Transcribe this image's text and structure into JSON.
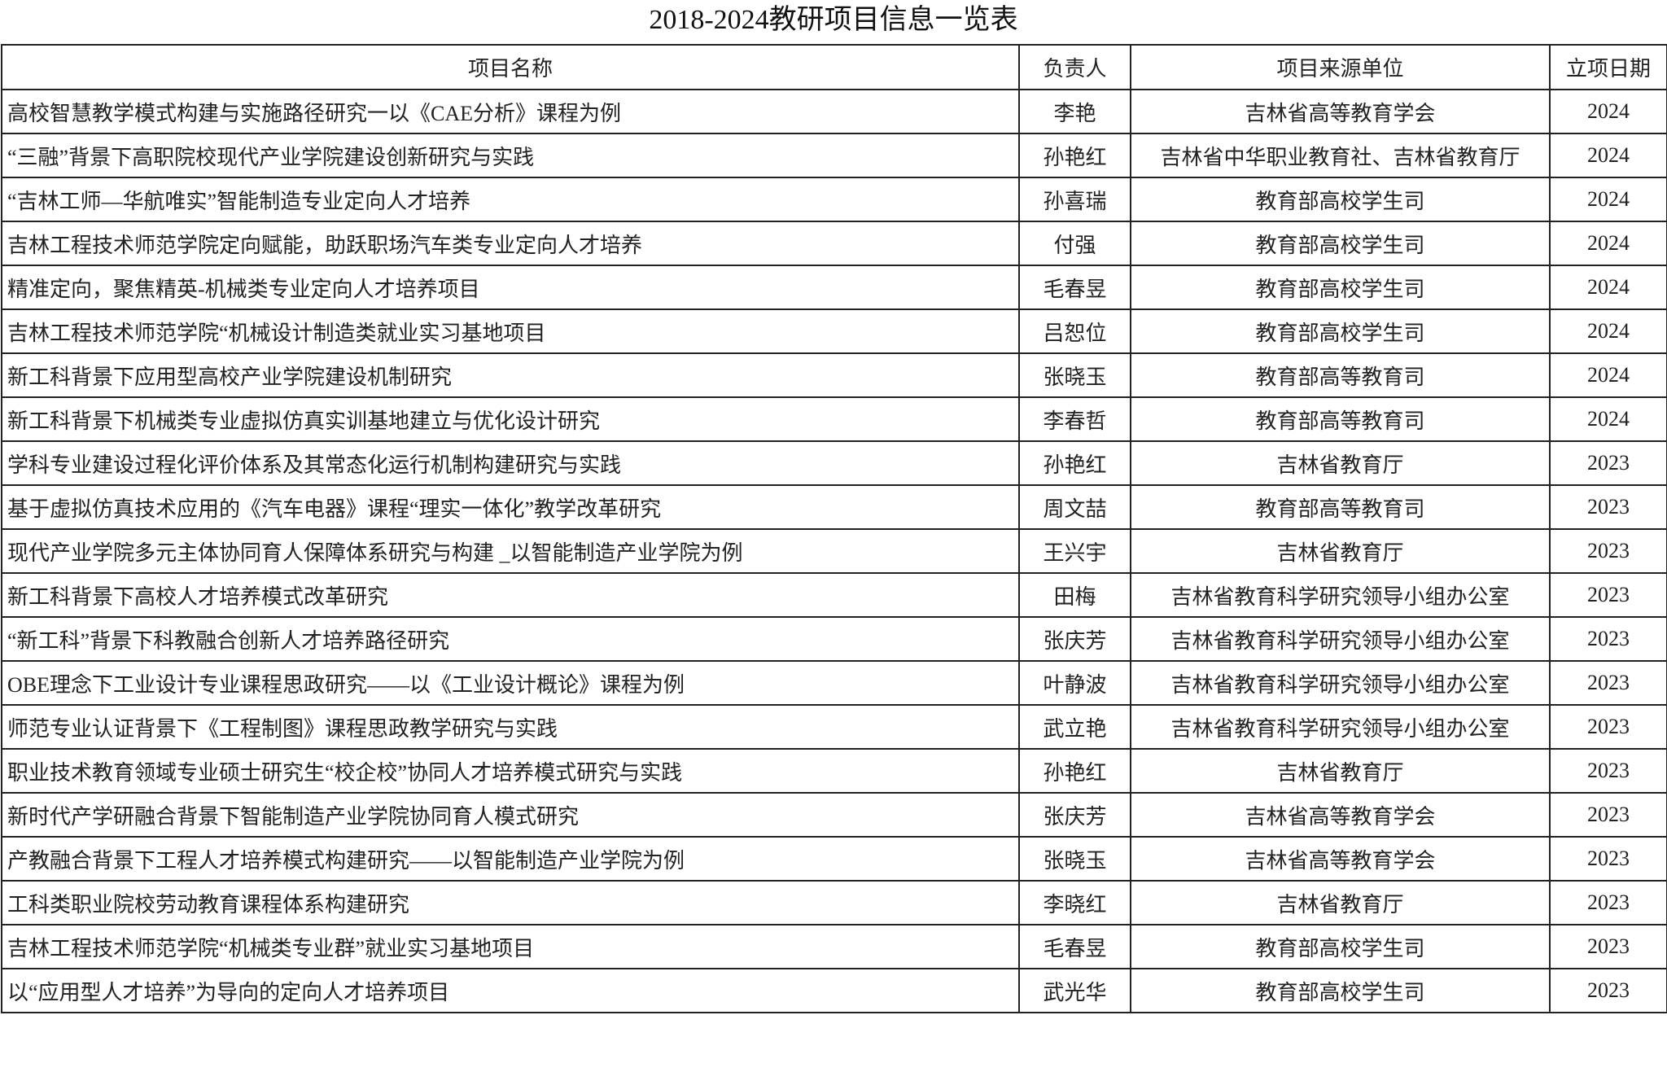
{
  "title": "2018-2024教研项目信息一览表",
  "headers": [
    "项目名称",
    "负责人",
    "项目来源单位",
    "立项日期"
  ],
  "rows": [
    [
      "高校智慧教学模式构建与实施路径研究一以《CAE分析》课程为例",
      "李艳",
      "吉林省高等教育学会",
      "2024"
    ],
    [
      "“三融”背景下高职院校现代产业学院建设创新研究与实践",
      "孙艳红",
      "吉林省中华职业教育社、吉林省教育厅",
      "2024"
    ],
    [
      "“吉林工师—华航唯实”智能制造专业定向人才培养",
      "孙喜瑞",
      "教育部高校学生司",
      "2024"
    ],
    [
      "吉林工程技术师范学院定向赋能，助跃职场汽车类专业定向人才培养",
      "付强",
      "教育部高校学生司",
      "2024"
    ],
    [
      "精准定向，聚焦精英-机械类专业定向人才培养项目",
      "毛春昱",
      "教育部高校学生司",
      "2024"
    ],
    [
      "吉林工程技术师范学院“机械设计制造类就业实习基地项目",
      "吕恕位",
      "教育部高校学生司",
      "2024"
    ],
    [
      "新工科背景下应用型高校产业学院建设机制研究",
      "张晓玉",
      "教育部高等教育司",
      "2024"
    ],
    [
      "新工科背景下机械类专业虚拟仿真实训基地建立与优化设计研究",
      "李春哲",
      "教育部高等教育司",
      "2024"
    ],
    [
      "学科专业建设过程化评价体系及其常态化运行机制构建研究与实践",
      "孙艳红",
      "吉林省教育厅",
      "2023"
    ],
    [
      "基于虚拟仿真技术应用的《汽车电器》课程“理实一体化”教学改革研究",
      "周文喆",
      "教育部高等教育司",
      "2023"
    ],
    [
      "现代产业学院多元主体协同育人保障体系研究与构建 _以智能制造产业学院为例",
      "王兴宇",
      "吉林省教育厅",
      "2023"
    ],
    [
      "新工科背景下高校人才培养模式改革研究",
      "田梅",
      "吉林省教育科学研究领导小组办公室",
      "2023"
    ],
    [
      "“新工科”背景下科教融合创新人才培养路径研究",
      "张庆芳",
      "吉林省教育科学研究领导小组办公室",
      "2023"
    ],
    [
      "OBE理念下工业设计专业课程思政研究——以《工业设计概论》课程为例",
      "叶静波",
      "吉林省教育科学研究领导小组办公室",
      "2023"
    ],
    [
      "师范专业认证背景下《工程制图》课程思政教学研究与实践",
      "武立艳",
      "吉林省教育科学研究领导小组办公室",
      "2023"
    ],
    [
      "职业技术教育领域专业硕士研究生“校企校”协同人才培养模式研究与实践",
      "孙艳红",
      "吉林省教育厅",
      "2023"
    ],
    [
      "新时代产学研融合背景下智能制造产业学院协同育人模式研究",
      "张庆芳",
      "吉林省高等教育学会",
      "2023"
    ],
    [
      "产教融合背景下工程人才培养模式构建研究——以智能制造产业学院为例",
      "张晓玉",
      "吉林省高等教育学会",
      "2023"
    ],
    [
      "工科类职业院校劳动教育课程体系构建研究",
      "李晓红",
      "吉林省教育厅",
      "2023"
    ],
    [
      "吉林工程技术师范学院“机械类专业群”就业实习基地项目",
      "毛春昱",
      "教育部高校学生司",
      "2023"
    ],
    [
      "以“应用型人才培养”为导向的定向人才培养项目",
      "武光华",
      "教育部高校学生司",
      "2023"
    ]
  ]
}
